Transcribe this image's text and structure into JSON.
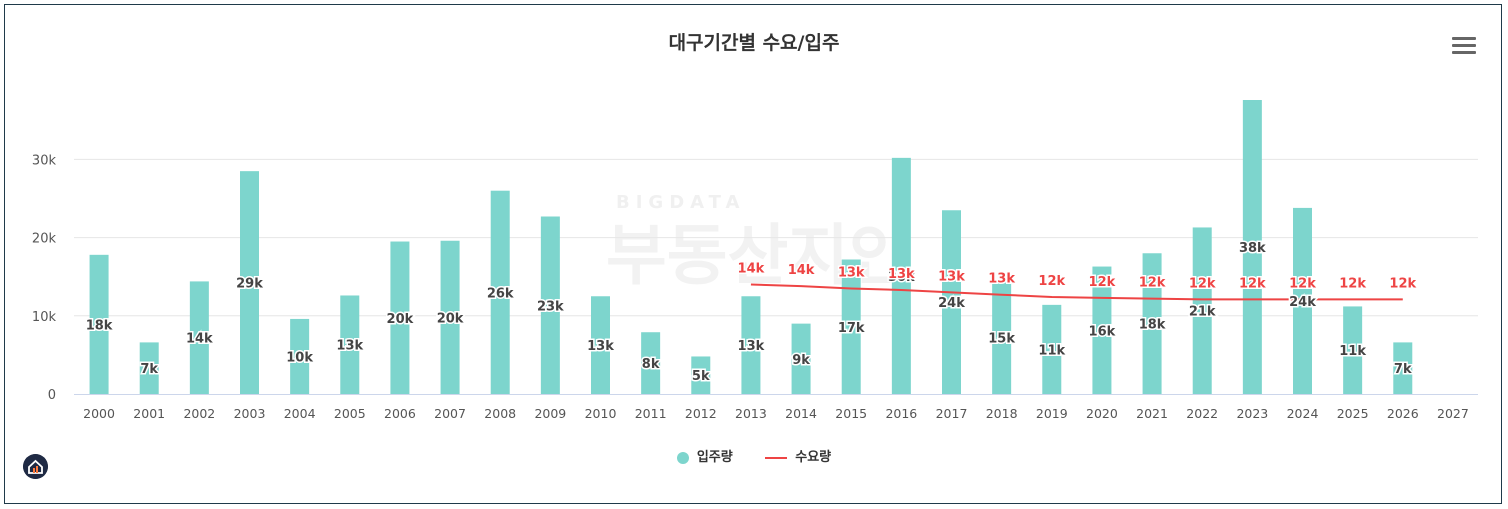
{
  "title": "대구기간별 수요/입주",
  "watermark": {
    "small": "BIGDATA",
    "main": "부동산지인"
  },
  "legend": {
    "supply": "입주량",
    "demand": "수요량"
  },
  "colors": {
    "supply": "#7dd5cd",
    "demand": "#ee4444",
    "grid": "#e6e6e6",
    "axis": "#ccd6eb",
    "text": "#555555",
    "supplyLabel": "#444444"
  },
  "icons": {
    "menu": "hamburger-menu-icon",
    "logo": "home-logo-icon"
  },
  "chart_data": {
    "type": "bar",
    "title": "대구기간별 수요/입주",
    "categories": [
      "2000",
      "2001",
      "2002",
      "2003",
      "2004",
      "2005",
      "2006",
      "2007",
      "2008",
      "2009",
      "2010",
      "2011",
      "2012",
      "2013",
      "2014",
      "2015",
      "2016",
      "2017",
      "2018",
      "2019",
      "2020",
      "2021",
      "2022",
      "2023",
      "2024",
      "2025",
      "2026",
      "2027"
    ],
    "ylim": [
      0,
      38000
    ],
    "yticks": [
      0,
      10000,
      20000,
      30000
    ],
    "ytick_labels": [
      "0",
      "10k",
      "20k",
      "30k"
    ],
    "grid": true,
    "legend_position": "bottom-center",
    "series": [
      {
        "name": "입주량",
        "type": "bar",
        "values": [
          17800,
          6600,
          14400,
          28500,
          9600,
          12600,
          19500,
          19600,
          26000,
          22700,
          12500,
          7900,
          4800,
          12500,
          9000,
          17200,
          30200,
          23500,
          14500,
          11400,
          16300,
          18000,
          21300,
          37600,
          23800,
          11200,
          6600,
          null
        ],
        "labels": [
          "18k",
          "7k",
          "14k",
          "29k",
          "10k",
          "13k",
          "20k",
          "20k",
          "26k",
          "23k",
          "13k",
          "8k",
          "5k",
          "13k",
          "9k",
          "17k",
          "30k",
          "24k",
          "15k",
          "11k",
          "16k",
          "18k",
          "21k",
          "38k",
          "24k",
          "11k",
          "7k",
          ""
        ]
      },
      {
        "name": "수요량",
        "type": "line",
        "values": [
          null,
          null,
          null,
          null,
          null,
          null,
          null,
          null,
          null,
          null,
          null,
          null,
          null,
          14000,
          13800,
          13500,
          13300,
          13000,
          12700,
          12400,
          12300,
          12200,
          12100,
          12100,
          12100,
          12100,
          12100,
          null
        ],
        "labels": [
          "",
          "",
          "",
          "",
          "",
          "",
          "",
          "",
          "",
          "",
          "",
          "",
          "",
          "14k",
          "14k",
          "13k",
          "13k",
          "13k",
          "13k",
          "12k",
          "12k",
          "12k",
          "12k",
          "12k",
          "12k",
          "12k",
          "12k",
          ""
        ]
      }
    ]
  }
}
